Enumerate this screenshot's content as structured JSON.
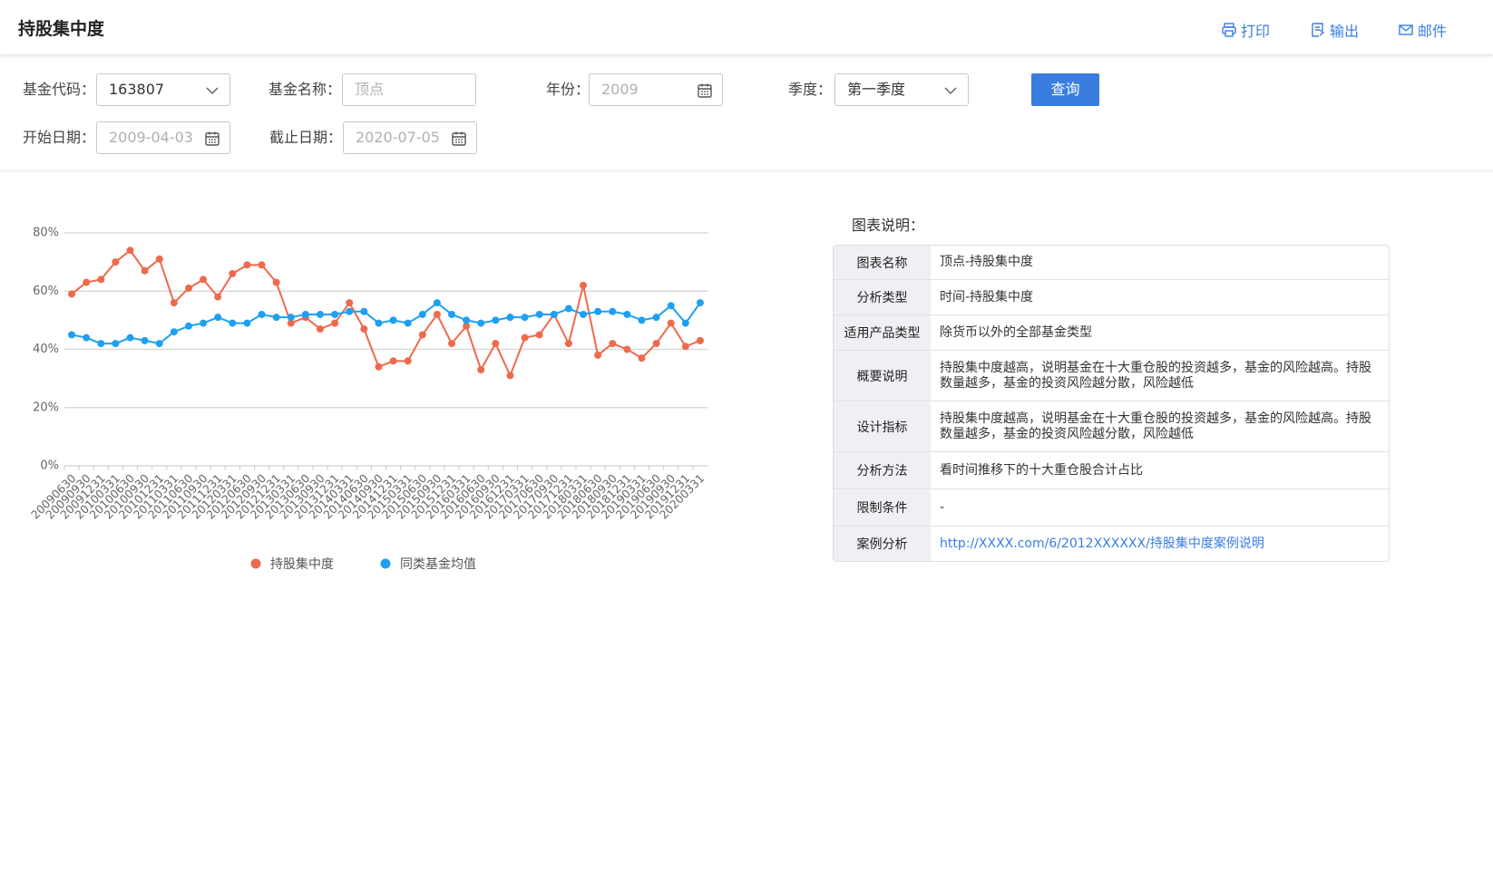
{
  "header": {
    "title": "持股集中度",
    "actions": [
      "打印",
      "输出",
      "邮件"
    ]
  },
  "form": {
    "fields": [
      {
        "label": "基金代码：",
        "value": "163807"
      },
      {
        "label": "基金名称：",
        "placeholder": "顶点"
      },
      {
        "label": "年份：",
        "placeholder": "2009"
      },
      {
        "label": "季度：",
        "value": "第一季度"
      },
      {
        "label": "开始日期：",
        "placeholder": "2009-04-03"
      },
      {
        "label": "截止日期：",
        "placeholder": "2020-07-05"
      }
    ],
    "button": "查询"
  },
  "chart_data": {
    "type": "line",
    "categories": [
      "20090630",
      "20090930",
      "20091231",
      "20100331",
      "20100630",
      "20100930",
      "20101231",
      "20110331",
      "20110630",
      "20110930",
      "20111231",
      "20120331",
      "20120630",
      "20120930",
      "20121231",
      "20130331",
      "20130630",
      "20130930",
      "20131231",
      "20140331",
      "20140630",
      "20140930",
      "20141231",
      "20150331",
      "20150630",
      "20150930",
      "20151231",
      "20160331",
      "20160630",
      "20160930",
      "20161231",
      "20170331",
      "20170630",
      "20170930",
      "20171231",
      "20180331",
      "20180630",
      "20180930",
      "20181231",
      "20190331",
      "20190630",
      "20190930",
      "20191231",
      "20200331"
    ],
    "series": [
      {
        "name": "持股集中度",
        "color": "#ee6a4c",
        "values": [
          59,
          63,
          64,
          70,
          74,
          67,
          71,
          56,
          61,
          64,
          58,
          66,
          69,
          69,
          63,
          49,
          51,
          47,
          49,
          56,
          47,
          34,
          36,
          36,
          45,
          52,
          42,
          48,
          33,
          42,
          31,
          44,
          45,
          52,
          42,
          62,
          38,
          42,
          40,
          37,
          42,
          49,
          41,
          43
        ]
      },
      {
        "name": "同类基金均值",
        "color": "#1ea0f0",
        "values": [
          45,
          44,
          42,
          42,
          44,
          43,
          42,
          46,
          48,
          49,
          51,
          49,
          49,
          52,
          51,
          51,
          52,
          52,
          52,
          53,
          53,
          49,
          50,
          49,
          52,
          56,
          52,
          50,
          49,
          50,
          51,
          51,
          52,
          52,
          54,
          52,
          53,
          53,
          52,
          50,
          51,
          55,
          49,
          56
        ]
      }
    ],
    "ylim": [
      0,
      80
    ],
    "yticks": [
      {
        "value": 0,
        "label": "0%"
      },
      {
        "value": 20,
        "label": "20%"
      },
      {
        "value": 40,
        "label": "40%"
      },
      {
        "value": 60,
        "label": "60%"
      },
      {
        "value": 80,
        "label": "80%"
      }
    ],
    "grid": true,
    "legend": "bottom"
  },
  "description": {
    "title": "图表说明：",
    "rows": [
      [
        "图表名称",
        "顶点-持股集中度"
      ],
      [
        "分析类型",
        "时间-持股集中度"
      ],
      [
        "适用产品类型",
        "除货币以外的全部基金类型"
      ],
      [
        "概要说明",
        "持股集中度越高，说明基金在十大重仓股的投资越多，基金的风险越高。持股数量越多，基金的投资风险越分散，风险越低"
      ],
      [
        "设计指标",
        "持股集中度越高，说明基金在十大重仓股的投资越多，基金的风险越高。持股数量越多，基金的投资风险越分散，风险越低"
      ],
      [
        "分析方法",
        "看时间推移下的十大重仓股合计占比"
      ],
      [
        "限制条件",
        "-"
      ],
      [
        "案例分析",
        "http://XXXX.com/6/2012XXXXXX/持股集中度案例说明"
      ]
    ]
  }
}
